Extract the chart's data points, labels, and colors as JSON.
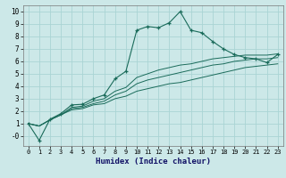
{
  "xlabel": "Humidex (Indice chaleur)",
  "background_color": "#cce8e8",
  "grid_color": "#aad4d4",
  "line_color": "#1a6b5a",
  "xlim": [
    -0.5,
    23.5
  ],
  "ylim": [
    -0.8,
    10.5
  ],
  "xticks": [
    0,
    1,
    2,
    3,
    4,
    5,
    6,
    7,
    8,
    9,
    10,
    11,
    12,
    13,
    14,
    15,
    16,
    17,
    18,
    19,
    20,
    21,
    22,
    23
  ],
  "yticks": [
    0,
    1,
    2,
    3,
    4,
    5,
    6,
    7,
    8,
    9,
    10
  ],
  "main_x": [
    0,
    1,
    2,
    3,
    4,
    5,
    6,
    7,
    8,
    9,
    10,
    11,
    12,
    13,
    14,
    15,
    16,
    17,
    18,
    19,
    20,
    21,
    22,
    23
  ],
  "main_y": [
    1.0,
    -0.35,
    1.35,
    1.8,
    2.5,
    2.55,
    3.0,
    3.3,
    4.6,
    5.2,
    8.5,
    8.8,
    8.7,
    9.1,
    10.0,
    8.5,
    8.3,
    7.6,
    7.0,
    6.55,
    6.3,
    6.2,
    5.9,
    6.55
  ],
  "trend_y1": [
    1.0,
    0.8,
    1.3,
    1.7,
    2.1,
    2.2,
    2.5,
    2.6,
    3.0,
    3.2,
    3.6,
    3.8,
    4.0,
    4.2,
    4.3,
    4.5,
    4.7,
    4.9,
    5.1,
    5.3,
    5.5,
    5.6,
    5.7,
    5.8
  ],
  "trend_y2": [
    1.0,
    0.8,
    1.3,
    1.7,
    2.2,
    2.3,
    2.6,
    2.8,
    3.3,
    3.6,
    4.2,
    4.5,
    4.7,
    4.9,
    5.1,
    5.3,
    5.5,
    5.7,
    5.8,
    6.0,
    6.1,
    6.2,
    6.2,
    6.3
  ],
  "trend_y3": [
    1.0,
    0.8,
    1.3,
    1.7,
    2.3,
    2.4,
    2.8,
    3.0,
    3.6,
    3.9,
    4.7,
    5.0,
    5.3,
    5.5,
    5.7,
    5.8,
    6.0,
    6.2,
    6.3,
    6.4,
    6.5,
    6.5,
    6.5,
    6.6
  ]
}
